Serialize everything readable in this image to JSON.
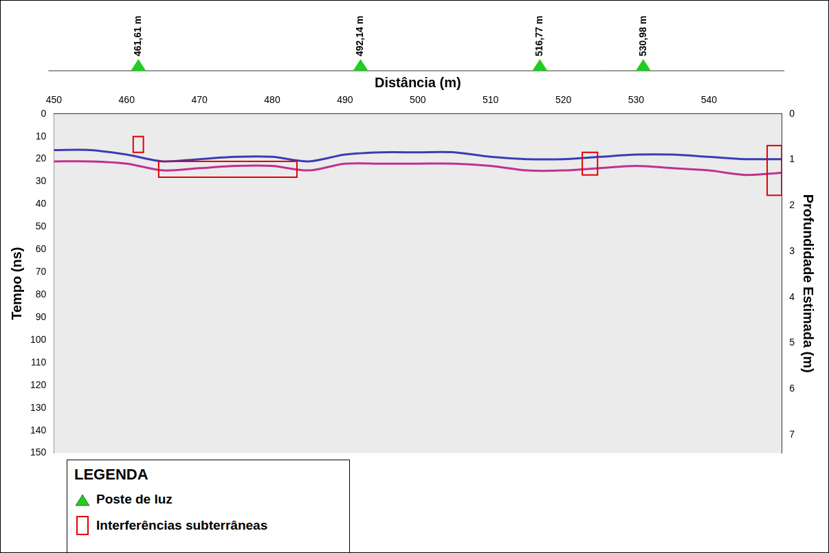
{
  "chart_data": {
    "type": "line",
    "x_label": "Distância (m)",
    "y_label": "Tempo (ns)",
    "y2_label": "Profundidade Estimada (m)",
    "xlim": [
      450,
      550
    ],
    "xticks": [
      450,
      460,
      470,
      480,
      490,
      500,
      510,
      520,
      530,
      540
    ],
    "ylim": [
      0,
      150
    ],
    "yticks": [
      0,
      10,
      20,
      30,
      40,
      50,
      60,
      70,
      80,
      90,
      100,
      110,
      120,
      130,
      140,
      150
    ],
    "y2lim": [
      0,
      7.4
    ],
    "y2ticks": [
      0,
      1,
      2,
      3,
      4,
      5,
      6,
      7
    ],
    "grid": false,
    "x": [
      450,
      455,
      460,
      465,
      470,
      475,
      480,
      485,
      490,
      495,
      500,
      505,
      510,
      515,
      520,
      525,
      530,
      535,
      540,
      545,
      550
    ],
    "series": [
      {
        "color": "#3b3bb5",
        "values": [
          16,
          16,
          18,
          21,
          20,
          19,
          19,
          21,
          18,
          17,
          17,
          17,
          19,
          20,
          20,
          19,
          18,
          18,
          19,
          20,
          20
        ]
      },
      {
        "color": "#c0308f",
        "values": [
          21,
          21,
          22,
          25,
          24,
          23,
          23,
          25,
          22,
          22,
          22,
          22,
          23,
          25,
          25,
          24,
          23,
          24,
          25,
          27,
          26
        ]
      }
    ],
    "poles": [
      {
        "x": 461.61,
        "label": "461,61 m"
      },
      {
        "x": 492.14,
        "label": "492,14 m"
      },
      {
        "x": 516.77,
        "label": "516,77 m"
      },
      {
        "x": 530.98,
        "label": "530,98 m"
      }
    ],
    "boxes": [
      {
        "x": [
          460.9,
          462.3
        ],
        "y": [
          10,
          17
        ]
      },
      {
        "x": [
          464.4,
          483.4
        ],
        "y": [
          21,
          28
        ]
      },
      {
        "x": [
          522.6,
          524.7
        ],
        "y": [
          17,
          27
        ]
      },
      {
        "x": [
          548,
          550
        ],
        "y": [
          14,
          36
        ]
      }
    ],
    "legend_box": {
      "title": "LEGENDA",
      "items": [
        {
          "label": "Poste de luz",
          "color": "#22cc22",
          "marker": "triangle"
        },
        {
          "label": "Interferências subterrâneas",
          "color": "#e00000",
          "marker": "rect"
        }
      ]
    }
  }
}
